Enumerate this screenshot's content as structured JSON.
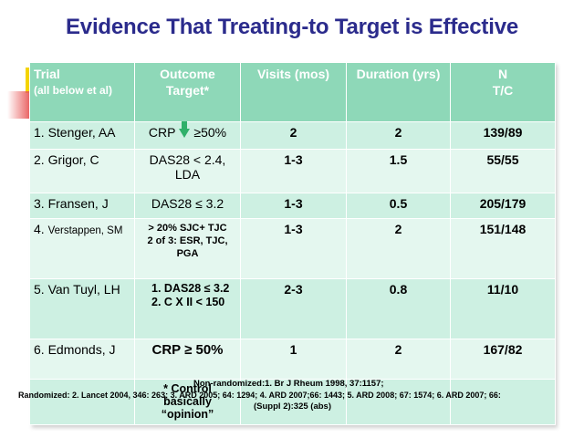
{
  "title": "Evidence That Treating-to Target is Effective",
  "headers": {
    "trial": "Trial",
    "trial_sub": "(all below et al)",
    "outcome": "Outcome Target*",
    "visits": "Visits (mos)",
    "duration": "Duration (yrs)",
    "n": "N",
    "n_sub": "T/C"
  },
  "rows": [
    {
      "trial": "1. Stenger, AA",
      "outcome_pre": "CRP",
      "outcome_post": "≥50%",
      "visits": "2",
      "duration": "2",
      "n": "139/89"
    },
    {
      "trial": "2. Grigor, C",
      "outcome": "DAS28 < 2.4, LDA",
      "visits": "1-3",
      "duration": "1.5",
      "n": "55/55"
    },
    {
      "trial": "3. Fransen, J",
      "outcome": "DAS28 ≤ 3.2",
      "visits": "1-3",
      "duration": "0.5",
      "n": "205/179"
    },
    {
      "trial_num": "4.",
      "trial_name": "Verstappen, SM",
      "outcome_line1": "> 20% SJC+ TJC",
      "outcome_line2": "2 of 3: ESR, TJC, PGA",
      "visits": "1-3",
      "duration": "2",
      "n": "151/148"
    },
    {
      "trial": "5. Van Tuyl, LH",
      "outcome_item1": "1.   DAS28 ≤ 3.2",
      "outcome_item2": "2.   C  X II < 150",
      "visits": "2-3",
      "duration": "0.8",
      "n": "11/10"
    },
    {
      "trial": "6. Edmonds, J",
      "outcome_pre": "CRP",
      "outcome_post": "≥ 50%",
      "visits": "1",
      "duration": "2",
      "n": "167/82"
    }
  ],
  "footnote": "* Control basically “opinion”",
  "references": {
    "non_randomized": "Non-randomized:1. Br J Rheum 1998, 37:1157;",
    "randomized": "Randomized:  2.  Lancet 2004, 346: 263;  3.  ARD 2005; 64: 1294;  4.  ARD 2007;66: 1443;  5.  ARD 2008; 67: 1574;  6.  ARD 2007; 66:",
    "suppl": "(Suppl 2):325 (abs)"
  },
  "colors": {
    "title": "#2b2b8c",
    "header_bg": "#8ed8b8",
    "row_odd": "#cdf0e2",
    "row_even": "#e4f7ef",
    "arrow": "#2fb06a"
  },
  "icons": [
    "down-arrow-icon"
  ]
}
